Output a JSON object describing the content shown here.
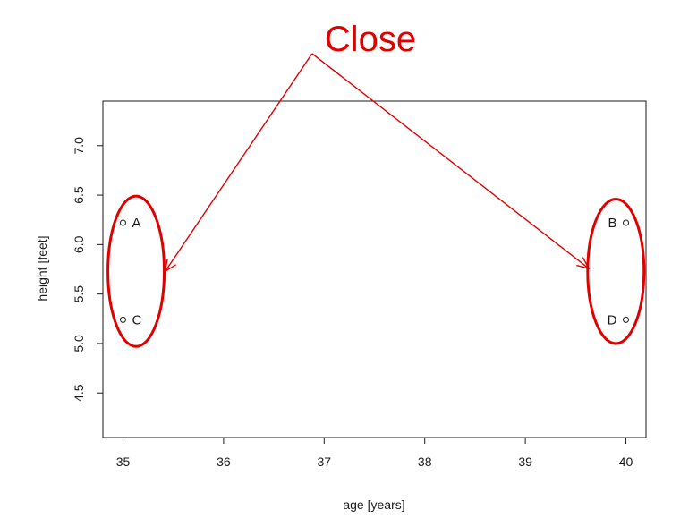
{
  "chart_data": {
    "type": "scatter",
    "xlabel": "age [years]",
    "ylabel": "height [feet]",
    "xlim": [
      34.8,
      40.2
    ],
    "ylim": [
      4.05,
      7.45
    ],
    "x_ticks": [
      35,
      36,
      37,
      38,
      39,
      40
    ],
    "y_ticks": [
      4.5,
      5.0,
      5.5,
      6.0,
      6.5,
      7.0
    ],
    "x_tick_labels": [
      "35",
      "36",
      "37",
      "38",
      "39",
      "40"
    ],
    "y_tick_labels": [
      "4.5",
      "5.0",
      "5.5",
      "6.0",
      "6.5",
      "7.0"
    ],
    "grid": false,
    "points": [
      {
        "label": "A",
        "x": 35,
        "y": 6.22,
        "label_side": "right"
      },
      {
        "label": "B",
        "x": 40,
        "y": 6.22,
        "label_side": "left"
      },
      {
        "label": "C",
        "x": 35,
        "y": 5.24,
        "label_side": "right"
      },
      {
        "label": "D",
        "x": 40,
        "y": 5.24,
        "label_side": "left"
      }
    ],
    "annotation": {
      "text": "Close",
      "color": "#e00000",
      "origin": {
        "x": 36.88,
        "y": 7.93
      },
      "arrow_targets": [
        {
          "x": 35.42,
          "y": 5.73
        },
        {
          "x": 39.63,
          "y": 5.76
        }
      ],
      "ellipses": [
        {
          "cx": 35.13,
          "cy": 5.73,
          "rx": 0.28,
          "ry": 0.76
        },
        {
          "cx": 39.9,
          "cy": 5.73,
          "rx": 0.28,
          "ry": 0.73
        }
      ]
    }
  }
}
